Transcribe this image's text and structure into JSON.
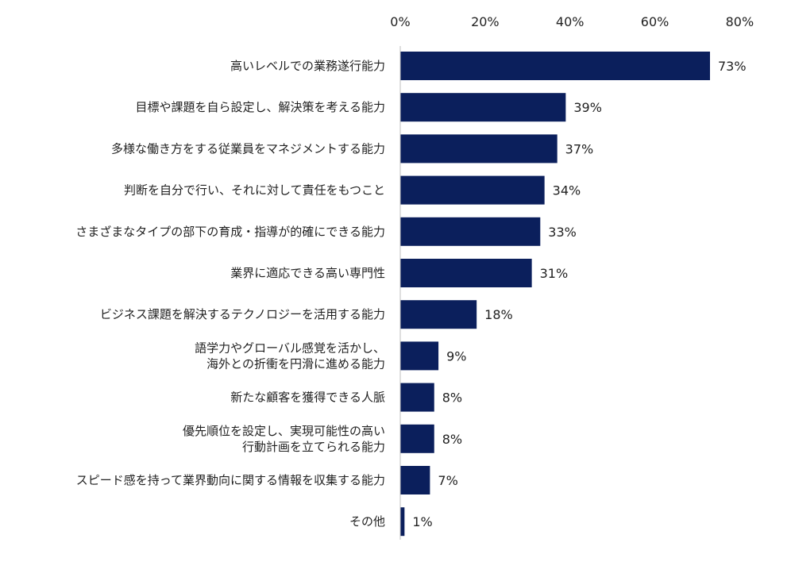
{
  "chart_data": {
    "type": "bar",
    "orientation": "horizontal",
    "categories": [
      [
        "高いレベルでの業務遂行能力"
      ],
      [
        "目標や課題を自ら設定し、解決策を考える能力"
      ],
      [
        "多様な働き方をする従業員をマネジメントする能力"
      ],
      [
        "判断を自分で行い、それに対して責任をもつこと"
      ],
      [
        "さまざまなタイプの部下の育成・指導が的確にできる能力"
      ],
      [
        "業界に適応できる高い専門性"
      ],
      [
        "ビジネス課題を解決するテクノロジーを活用する能力"
      ],
      [
        "語学力やグローバル感覚を活かし、",
        "海外との折衝を円滑に進める能力"
      ],
      [
        "新たな顧客を獲得できる人脈"
      ],
      [
        "優先順位を設定し、実現可能性の高い",
        "行動計画を立てられる能力"
      ],
      [
        "スピード感を持って業界動向に関する情報を収集する能力"
      ],
      [
        "その他"
      ]
    ],
    "values": [
      73,
      39,
      37,
      34,
      33,
      31,
      18,
      9,
      8,
      8,
      7,
      1
    ],
    "value_labels": [
      "73%",
      "39%",
      "37%",
      "34%",
      "33%",
      "31%",
      "18%",
      "9%",
      "8%",
      "8%",
      "7%",
      "1%"
    ],
    "x_ticks": [
      0,
      20,
      40,
      60,
      80
    ],
    "x_tick_labels": [
      "0%",
      "20%",
      "40%",
      "60%",
      "80%"
    ],
    "xlim": [
      0,
      80
    ],
    "axis_position": "top",
    "grid": false,
    "bar_color": "#0b1f5c",
    "title": "",
    "xlabel": "",
    "ylabel": ""
  }
}
